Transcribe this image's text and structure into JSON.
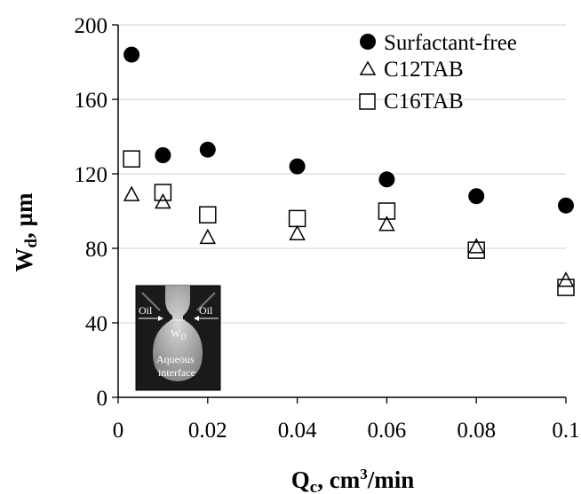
{
  "chart_data": {
    "type": "scatter",
    "xlabel": {
      "main": "Q",
      "sub": "c",
      "rest1": ", cm",
      "sup": "3",
      "rest2": "/min"
    },
    "ylabel": {
      "main": "W",
      "sub": "d",
      "rest": ", µm"
    },
    "xlim": [
      0,
      0.1
    ],
    "ylim": [
      0,
      200
    ],
    "x_ticks": [
      {
        "value": 0,
        "label": "0"
      },
      {
        "value": 0.02,
        "label": "0.02"
      },
      {
        "value": 0.04,
        "label": "0.04"
      },
      {
        "value": 0.06,
        "label": "0.06"
      },
      {
        "value": 0.08,
        "label": "0.08"
      },
      {
        "value": 0.1,
        "label": "0.1"
      }
    ],
    "y_ticks": [
      {
        "value": 0,
        "label": "0"
      },
      {
        "value": 40,
        "label": "40"
      },
      {
        "value": 80,
        "label": "80"
      },
      {
        "value": 120,
        "label": "120"
      },
      {
        "value": 160,
        "label": "160"
      },
      {
        "value": 200,
        "label": "200"
      }
    ],
    "grid": "horizontal",
    "legend_position": "top-right",
    "series": [
      {
        "name": "Surfactant-free",
        "marker": "filled-circle",
        "color": "#000000",
        "points": [
          [
            0.003,
            184
          ],
          [
            0.01,
            130
          ],
          [
            0.02,
            133
          ],
          [
            0.04,
            124
          ],
          [
            0.06,
            117
          ],
          [
            0.08,
            108
          ],
          [
            0.1,
            103
          ]
        ]
      },
      {
        "name": "C12TAB",
        "marker": "open-triangle",
        "color": "#000000",
        "points": [
          [
            0.003,
            109
          ],
          [
            0.01,
            105
          ],
          [
            0.02,
            86
          ],
          [
            0.04,
            88
          ],
          [
            0.06,
            93
          ],
          [
            0.08,
            81
          ],
          [
            0.1,
            63
          ]
        ]
      },
      {
        "name": "C16TAB",
        "marker": "open-square",
        "color": "#000000",
        "points": [
          [
            0.003,
            128
          ],
          [
            0.01,
            110
          ],
          [
            0.02,
            98
          ],
          [
            0.04,
            96
          ],
          [
            0.06,
            100
          ],
          [
            0.08,
            79
          ],
          [
            0.1,
            59
          ]
        ]
      }
    ],
    "inset": {
      "labels": {
        "oil_left": "Oil",
        "oil_right": "Oil",
        "width": "W",
        "width_sub": "D",
        "aqueous_line1": "Aqueous",
        "aqueous_line2": "interface"
      }
    }
  }
}
